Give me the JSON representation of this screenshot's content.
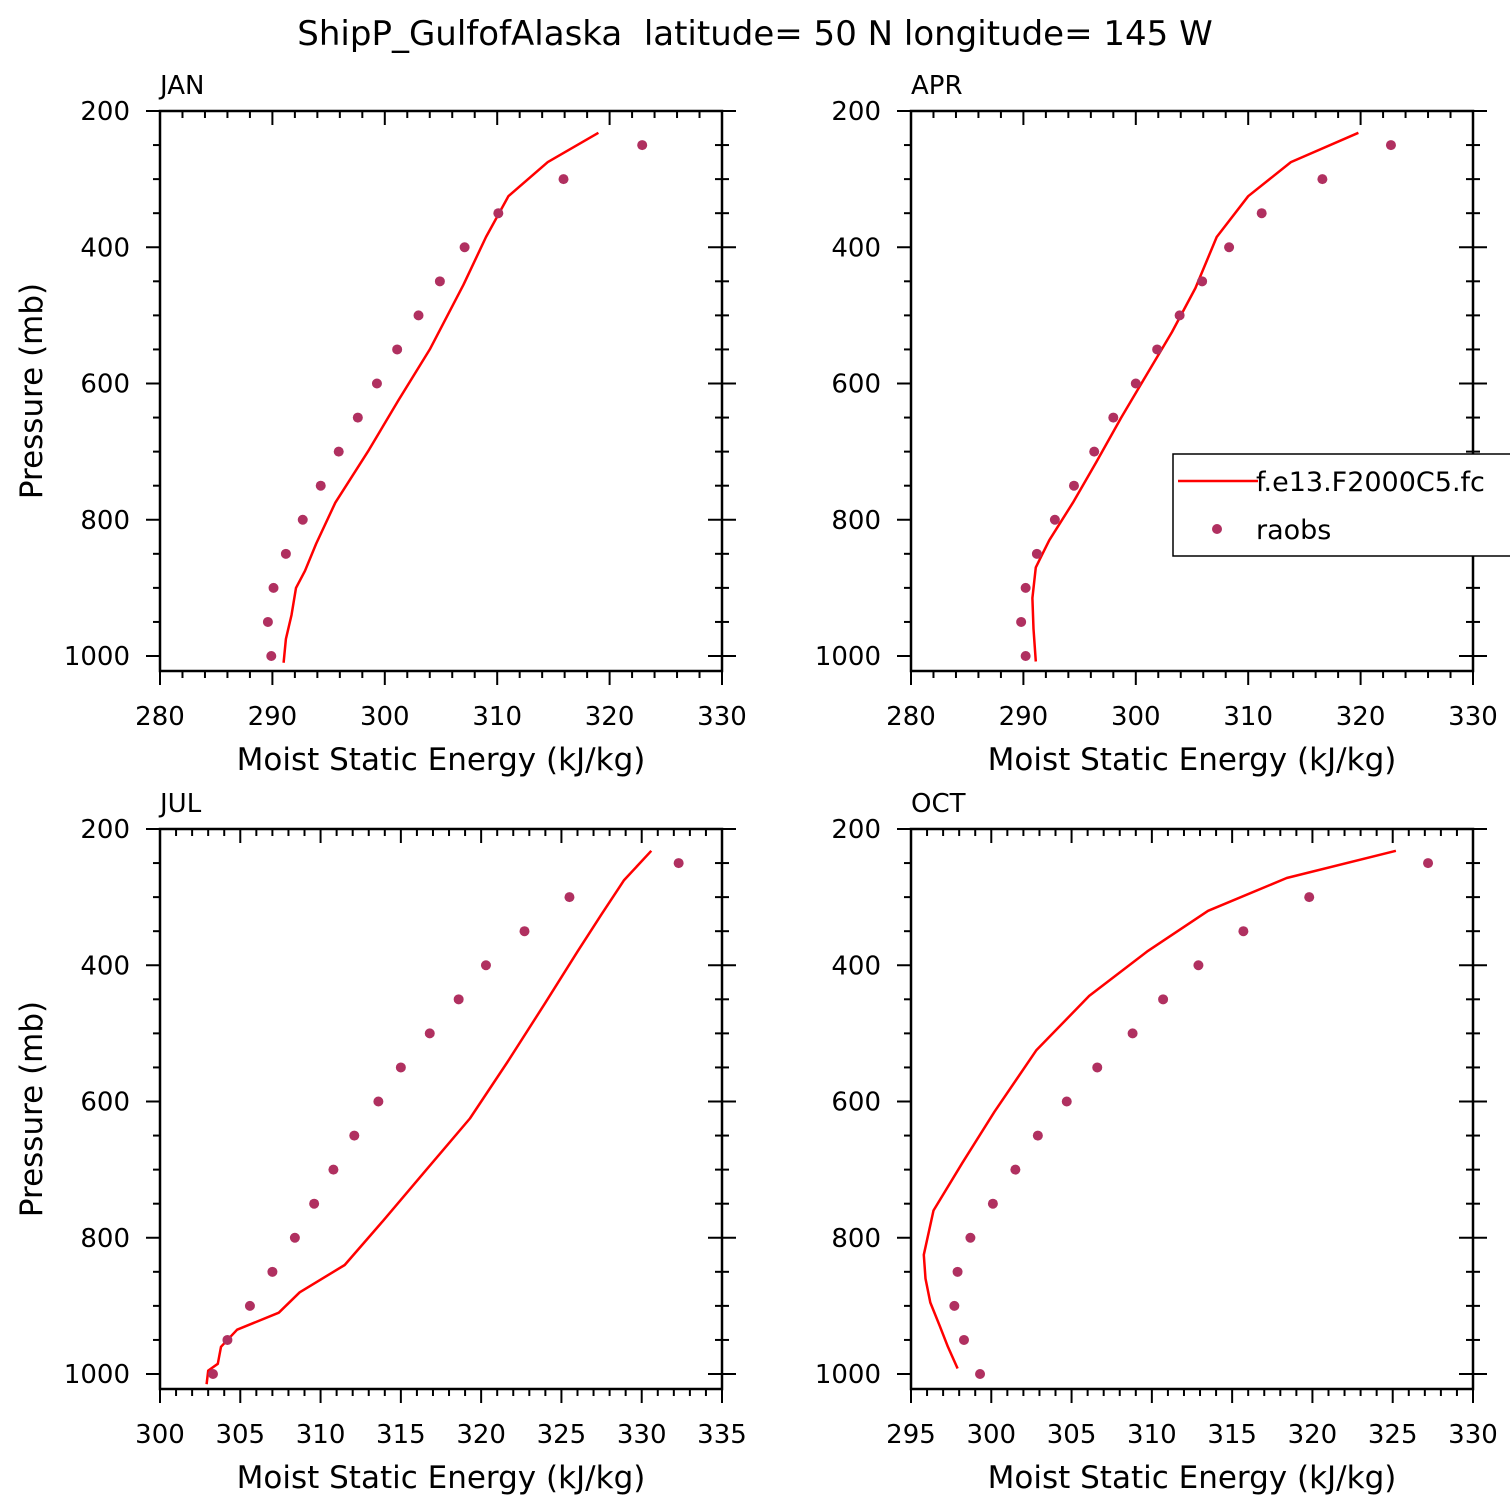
{
  "title": "ShipP_GulfofAlaska  latitude= 50 N longitude= 145 W",
  "colors": {
    "model": "#ff0000",
    "obs": "#b03060",
    "axis": "#000000"
  },
  "legend": {
    "model_label": "f.e13.F2000C5.fc",
    "obs_label": "raobs",
    "placement": "right, inside APR panel"
  },
  "chart_data": [
    {
      "type": "line",
      "panel": "JAN",
      "xlabel": "Moist Static Energy (kJ/kg)",
      "ylabel": "Pressure (mb)",
      "xlim": [
        280,
        330
      ],
      "ylim": [
        1000,
        200
      ],
      "y_inverted": true,
      "x_ticks": [
        280,
        290,
        300,
        310,
        320,
        330
      ],
      "y_ticks": [
        200,
        400,
        600,
        800,
        1000
      ],
      "series": [
        {
          "name": "f.e13.F2000C5.fc",
          "kind": "line",
          "points": [
            [
              291.0,
              1010
            ],
            [
              291.2,
              975
            ],
            [
              291.7,
              940
            ],
            [
              292.1,
              900
            ],
            [
              292.9,
              875
            ],
            [
              293.9,
              835
            ],
            [
              295.6,
              775
            ],
            [
              298.5,
              700
            ],
            [
              301.2,
              625
            ],
            [
              304.0,
              550
            ],
            [
              307.0,
              455
            ],
            [
              309.0,
              385
            ],
            [
              311.0,
              325
            ],
            [
              314.5,
              275
            ],
            [
              319.0,
              232
            ]
          ]
        },
        {
          "name": "raobs",
          "kind": "scatter",
          "points": [
            [
              289.9,
              1000
            ],
            [
              289.6,
              950
            ],
            [
              290.1,
              900
            ],
            [
              291.2,
              850
            ],
            [
              292.7,
              800
            ],
            [
              294.3,
              750
            ],
            [
              295.9,
              700
            ],
            [
              297.6,
              650
            ],
            [
              299.3,
              600
            ],
            [
              301.1,
              550
            ],
            [
              303.0,
              500
            ],
            [
              304.9,
              450
            ],
            [
              307.1,
              400
            ],
            [
              310.1,
              350
            ],
            [
              315.9,
              300
            ],
            [
              322.9,
              250
            ]
          ]
        }
      ]
    },
    {
      "type": "line",
      "panel": "APR",
      "xlabel": "Moist Static Energy (kJ/kg)",
      "ylabel": "",
      "xlim": [
        280,
        330
      ],
      "ylim": [
        1000,
        200
      ],
      "y_inverted": true,
      "x_ticks": [
        280,
        290,
        300,
        310,
        320,
        330
      ],
      "y_ticks": [
        200,
        400,
        600,
        800,
        1000
      ],
      "series": [
        {
          "name": "f.e13.F2000C5.fc",
          "kind": "line",
          "points": [
            [
              291.1,
              1008
            ],
            [
              290.9,
              960
            ],
            [
              290.8,
              915
            ],
            [
              291.1,
              870
            ],
            [
              291.7,
              850
            ],
            [
              292.3,
              830
            ],
            [
              294.4,
              775
            ],
            [
              296.5,
              715
            ],
            [
              298.7,
              650
            ],
            [
              300.5,
              600
            ],
            [
              303.2,
              525
            ],
            [
              305.3,
              460
            ],
            [
              307.2,
              385
            ],
            [
              310.0,
              325
            ],
            [
              313.8,
              275
            ],
            [
              319.8,
              232
            ]
          ]
        },
        {
          "name": "raobs",
          "kind": "scatter",
          "points": [
            [
              290.2,
              1000
            ],
            [
              289.8,
              950
            ],
            [
              290.2,
              900
            ],
            [
              291.2,
              850
            ],
            [
              292.8,
              800
            ],
            [
              294.5,
              750
            ],
            [
              296.3,
              700
            ],
            [
              298.0,
              650
            ],
            [
              300.0,
              600
            ],
            [
              301.9,
              550
            ],
            [
              303.9,
              500
            ],
            [
              305.9,
              450
            ],
            [
              308.3,
              400
            ],
            [
              311.2,
              350
            ],
            [
              316.6,
              300
            ],
            [
              322.7,
              250
            ]
          ]
        }
      ]
    },
    {
      "type": "line",
      "panel": "JUL",
      "xlabel": "Moist Static Energy (kJ/kg)",
      "ylabel": "Pressure (mb)",
      "xlim": [
        300,
        335
      ],
      "ylim": [
        1000,
        200
      ],
      "y_inverted": true,
      "x_ticks": [
        300,
        305,
        310,
        315,
        320,
        325,
        330,
        335
      ],
      "y_ticks": [
        200,
        400,
        600,
        800,
        1000
      ],
      "series": [
        {
          "name": "f.e13.F2000C5.fc",
          "kind": "line",
          "points": [
            [
              302.9,
              1015
            ],
            [
              303.0,
              995
            ],
            [
              303.6,
              985
            ],
            [
              303.8,
              960
            ],
            [
              304.8,
              935
            ],
            [
              307.4,
              910
            ],
            [
              308.7,
              880
            ],
            [
              311.5,
              840
            ],
            [
              313.9,
              775
            ],
            [
              316.6,
              700
            ],
            [
              319.3,
              625
            ],
            [
              321.7,
              540
            ],
            [
              324.0,
              455
            ],
            [
              326.0,
              380
            ],
            [
              327.5,
              325
            ],
            [
              328.9,
              275
            ],
            [
              330.6,
              232
            ]
          ]
        },
        {
          "name": "raobs",
          "kind": "scatter",
          "points": [
            [
              303.3,
              1000
            ],
            [
              304.2,
              950
            ],
            [
              305.6,
              900
            ],
            [
              307.0,
              850
            ],
            [
              308.4,
              800
            ],
            [
              309.6,
              750
            ],
            [
              310.8,
              700
            ],
            [
              312.1,
              650
            ],
            [
              313.6,
              600
            ],
            [
              315.0,
              550
            ],
            [
              316.8,
              500
            ],
            [
              318.6,
              450
            ],
            [
              320.3,
              400
            ],
            [
              322.7,
              350
            ],
            [
              325.5,
              300
            ],
            [
              332.3,
              250
            ]
          ]
        }
      ]
    },
    {
      "type": "line",
      "panel": "OCT",
      "xlabel": "Moist Static Energy (kJ/kg)",
      "ylabel": "",
      "xlim": [
        295,
        330
      ],
      "ylim": [
        1000,
        200
      ],
      "y_inverted": true,
      "x_ticks": [
        295,
        300,
        305,
        310,
        315,
        320,
        325,
        330
      ],
      "y_ticks": [
        200,
        400,
        600,
        800,
        1000
      ],
      "series": [
        {
          "name": "f.e13.F2000C5.fc",
          "kind": "line",
          "points": [
            [
              297.9,
              992
            ],
            [
              297.3,
              960
            ],
            [
              296.8,
              930
            ],
            [
              296.2,
              895
            ],
            [
              295.9,
              860
            ],
            [
              295.8,
              825
            ],
            [
              296.4,
              760
            ],
            [
              298.2,
              690
            ],
            [
              300.2,
              615
            ],
            [
              302.8,
              525
            ],
            [
              306.1,
              445
            ],
            [
              309.7,
              380
            ],
            [
              313.5,
              320
            ],
            [
              318.4,
              272
            ],
            [
              325.2,
              232
            ]
          ]
        },
        {
          "name": "raobs",
          "kind": "scatter",
          "points": [
            [
              299.3,
              1000
            ],
            [
              298.3,
              950
            ],
            [
              297.7,
              900
            ],
            [
              297.9,
              850
            ],
            [
              298.7,
              800
            ],
            [
              300.1,
              750
            ],
            [
              301.5,
              700
            ],
            [
              302.9,
              650
            ],
            [
              304.7,
              600
            ],
            [
              306.6,
              550
            ],
            [
              308.8,
              500
            ],
            [
              310.7,
              450
            ],
            [
              312.9,
              400
            ],
            [
              315.7,
              350
            ],
            [
              319.8,
              300
            ],
            [
              327.2,
              250
            ]
          ]
        }
      ]
    }
  ]
}
